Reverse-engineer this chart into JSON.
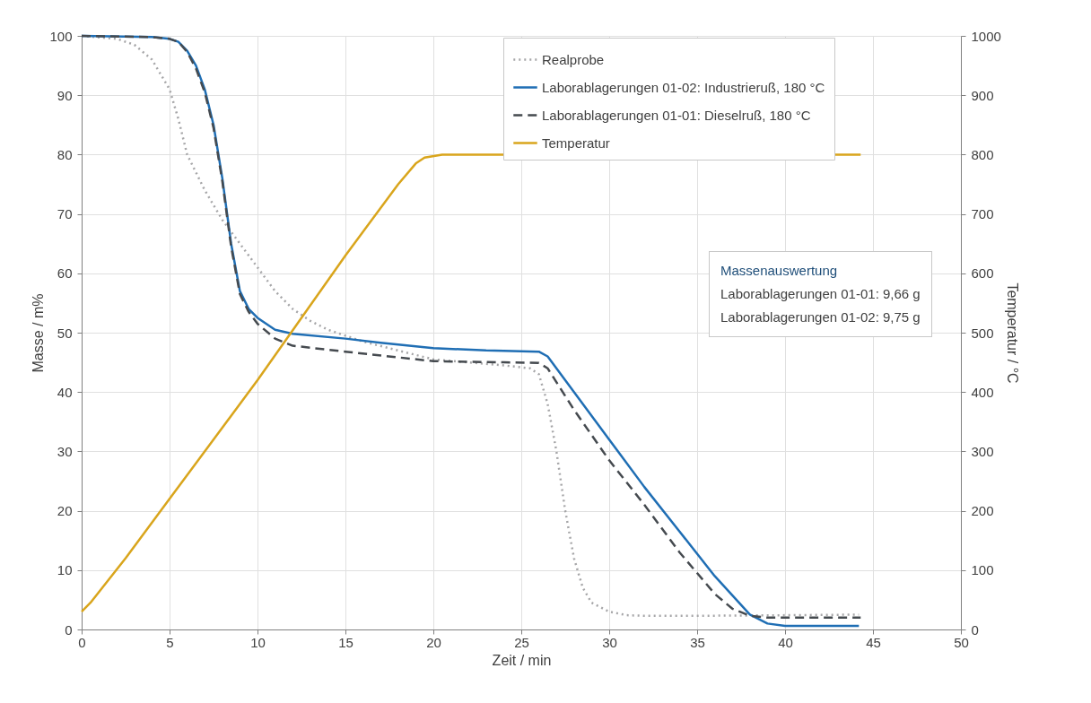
{
  "chart_data": {
    "type": "line",
    "xlabel": "Zeit / min",
    "ylabel": "Masse / m%",
    "y2label": "Temperatur / °C",
    "xlim": [
      0,
      50
    ],
    "xticks": [
      0,
      5,
      10,
      15,
      20,
      25,
      30,
      35,
      40,
      45,
      50
    ],
    "ylim": [
      0,
      100
    ],
    "yticks": [
      0,
      10,
      20,
      30,
      40,
      50,
      60,
      70,
      80,
      90,
      100
    ],
    "y2lim": [
      0,
      1000
    ],
    "y2ticks": [
      0,
      100,
      200,
      300,
      400,
      500,
      600,
      700,
      800,
      900,
      1000
    ],
    "grid": true,
    "legend": "top right",
    "marker": "none",
    "annotations": [
      "Massenauswertung",
      "Laborablagerungen 01-01: 9,66 g",
      "Laborablagerungen 01-02: 9,75 g"
    ],
    "series": [
      {
        "name": "Realprobe",
        "color": "#a6a6a8",
        "line_style": "dotted",
        "x": [
          0,
          2,
          3,
          4,
          5,
          5.5,
          6,
          7,
          8,
          9,
          10,
          11,
          12,
          13,
          14,
          15,
          16,
          18,
          20,
          22,
          24,
          25.5,
          26,
          26.5,
          27,
          27.5,
          28,
          28.5,
          29,
          30,
          31,
          32,
          35,
          40,
          44.2
        ],
        "values": [
          100,
          99.5,
          98.5,
          96,
          91,
          86,
          80,
          74,
          69,
          65,
          61,
          57,
          54,
          52,
          50.5,
          49.5,
          48.5,
          47,
          45.5,
          45,
          44.5,
          44,
          43,
          38,
          30,
          20,
          12,
          7,
          4.5,
          3,
          2.4,
          2.3,
          2.3,
          2.4,
          2.5
        ]
      },
      {
        "name": "Laborablagerungen 01-02: Industrieruß, 180 °C",
        "color": "#1f6eb4",
        "line_style": "solid",
        "x": [
          0,
          4,
          5,
          5.5,
          6,
          6.5,
          7,
          7.5,
          8,
          8.5,
          9,
          9.5,
          10,
          11,
          12,
          15,
          17,
          20,
          23,
          26,
          26.5,
          28,
          30,
          32,
          34,
          36,
          38,
          39,
          40,
          44.2
        ],
        "values": [
          100,
          99.8,
          99.5,
          99,
          97.5,
          95,
          91,
          85,
          76,
          65,
          57,
          54,
          52.5,
          50.5,
          49.8,
          49,
          48.3,
          47.4,
          47,
          46.8,
          46,
          40,
          32,
          24,
          16.5,
          9,
          2.5,
          1,
          0.6,
          0.6
        ]
      },
      {
        "name": "Laborablagerungen 01-01: Dieselruß, 180 °C",
        "color": "#454a4f",
        "line_style": "dashed",
        "x": [
          0,
          4,
          5,
          5.5,
          6,
          6.5,
          7,
          7.5,
          8,
          8.5,
          9,
          9.5,
          10,
          11,
          12,
          15,
          20,
          24,
          26,
          26.5,
          28,
          30,
          32,
          34,
          36,
          37,
          38,
          39,
          44.3
        ],
        "values": [
          100,
          99.8,
          99.5,
          99,
          97.3,
          94.5,
          90.5,
          84.5,
          75.5,
          64.5,
          56.5,
          53.5,
          51.5,
          49,
          47.8,
          46.8,
          45.2,
          45,
          44.9,
          44,
          37,
          28.5,
          21,
          13,
          6,
          3.5,
          2.3,
          2,
          2
        ]
      },
      {
        "name": "Temperatur",
        "color": "#d9a51c",
        "line_style": "solid",
        "axis": "y2",
        "x": [
          0,
          0.5,
          2.5,
          5,
          10,
          15,
          18,
          19,
          19.5,
          20.5,
          44.3
        ],
        "values": [
          30,
          45,
          120,
          220,
          420,
          630,
          750,
          785,
          795,
          800,
          800
        ]
      }
    ]
  }
}
